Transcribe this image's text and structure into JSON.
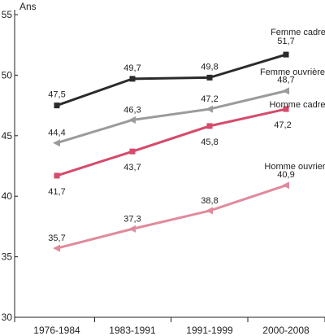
{
  "chart_data": {
    "type": "line",
    "categories": [
      "1976-1984",
      "1983-1991",
      "1991-1999",
      "2000-2008"
    ],
    "y_unit": "Ans",
    "ylim": [
      30,
      55
    ],
    "yticks": [
      30,
      35,
      40,
      45,
      50,
      55
    ],
    "grid": false,
    "legend": "inline-labels",
    "series": [
      {
        "name": "Femme cadre",
        "values": [
          47.5,
          49.7,
          49.8,
          51.7
        ],
        "value_labels": [
          "47,5",
          "49,7",
          "49,8",
          "51,7"
        ],
        "color": "#2b2b2b",
        "marker": "square"
      },
      {
        "name": "Femme ouvrière",
        "values": [
          44.4,
          46.3,
          47.2,
          48.7
        ],
        "value_labels": [
          "44,4",
          "46,3",
          "47,2",
          "48,7"
        ],
        "color": "#9b9b9b",
        "marker": "triangle-left"
      },
      {
        "name": "Homme cadre",
        "values": [
          41.7,
          43.7,
          45.8,
          47.2
        ],
        "value_labels": [
          "41,7",
          "43,7",
          "45,8",
          "47,2"
        ],
        "color": "#d64a6b",
        "marker": "square"
      },
      {
        "name": "Homme ouvrier",
        "values": [
          35.7,
          37.3,
          38.8,
          40.9
        ],
        "value_labels": [
          "35,7",
          "37,3",
          "38,8",
          "40,9"
        ],
        "color": "#e08a9d",
        "marker": "triangle-left"
      }
    ]
  }
}
